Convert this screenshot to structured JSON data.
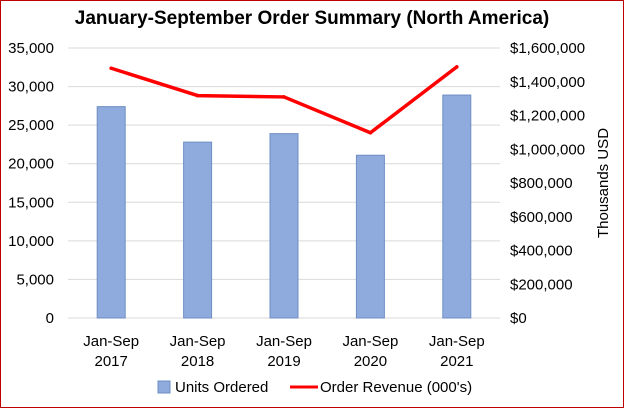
{
  "chart_data": {
    "type": "bar",
    "title": "January-September Order Summary (North America)",
    "categories": [
      "Jan-Sep 2017",
      "Jan-Sep 2018",
      "Jan-Sep 2019",
      "Jan-Sep 2020",
      "Jan-Sep 2021"
    ],
    "category_lines": [
      [
        "Jan-Sep",
        "2017"
      ],
      [
        "Jan-Sep",
        "2018"
      ],
      [
        "Jan-Sep",
        "2019"
      ],
      [
        "Jan-Sep",
        "2020"
      ],
      [
        "Jan-Sep",
        "2021"
      ]
    ],
    "series": [
      {
        "name": "Units Ordered",
        "type": "bar",
        "axis": "left",
        "color": "#8faadc",
        "stroke": "#6f8fc4",
        "values": [
          27400,
          22800,
          23900,
          21100,
          28900
        ]
      },
      {
        "name": "Order Revenue (000's)",
        "type": "line",
        "axis": "right",
        "color": "#ff0000",
        "values": [
          1480000,
          1318000,
          1310000,
          1098000,
          1488000
        ]
      }
    ],
    "left_axis": {
      "min": 0,
      "max": 35000,
      "step": 5000,
      "ticks": [
        "0",
        "5,000",
        "10,000",
        "15,000",
        "20,000",
        "25,000",
        "30,000",
        "35,000"
      ]
    },
    "right_axis": {
      "min": 0,
      "max": 1600000,
      "step": 200000,
      "label": "Thousands USD",
      "ticks": [
        "$0",
        "$200,000",
        "$400,000",
        "$600,000",
        "$800,000",
        "$1,000,000",
        "$1,200,000",
        "$1,400,000",
        "$1,600,000"
      ]
    },
    "grid": true,
    "legend_position": "bottom"
  }
}
